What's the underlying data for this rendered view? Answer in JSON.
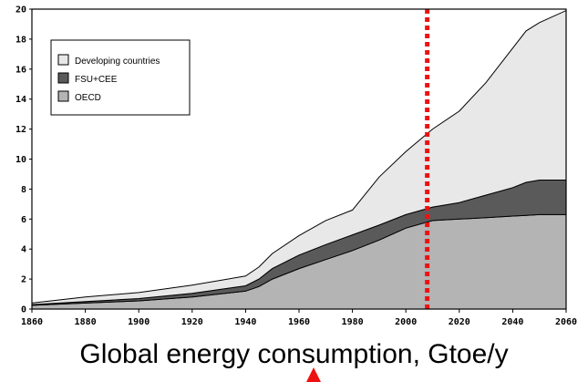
{
  "caption": "Global energy consumption, Gtoe/y",
  "colors": {
    "developing": "#e8e8e8",
    "fsu_cee": "#5a5a5a",
    "oecd": "#b4b4b4",
    "marker_line": "#ee1111",
    "arrow": "#ee1111"
  },
  "chart_data": {
    "type": "area",
    "stacked": true,
    "title": "",
    "xlabel": "",
    "ylabel": "",
    "xlim": [
      1860,
      2060
    ],
    "ylim": [
      0,
      20
    ],
    "x_ticks": [
      "1860",
      "1880",
      "1900",
      "1920",
      "1940",
      "1960",
      "1980",
      "2000",
      "2020",
      "2040",
      "2060"
    ],
    "y_ticks": [
      "0",
      "2",
      "4",
      "6",
      "8",
      "10",
      "12",
      "14",
      "16",
      "18",
      "20"
    ],
    "legend_position": "top-left",
    "legend": [
      "Developing countries",
      "FSU+CEE",
      "OECD"
    ],
    "x": [
      1860,
      1880,
      1900,
      1920,
      1940,
      1945,
      1950,
      1960,
      1970,
      1980,
      1990,
      2000,
      2010,
      2020,
      2030,
      2040,
      2045,
      2050,
      2060
    ],
    "series": [
      {
        "name": "OECD",
        "values": [
          0.25,
          0.4,
          0.55,
          0.8,
          1.2,
          1.5,
          2.0,
          2.7,
          3.3,
          3.9,
          4.6,
          5.4,
          5.9,
          6.0,
          6.1,
          6.2,
          6.25,
          6.3,
          6.3
        ]
      },
      {
        "name": "FSU+CEE",
        "values": [
          0.05,
          0.1,
          0.15,
          0.25,
          0.35,
          0.5,
          0.7,
          0.9,
          1.0,
          1.05,
          1.0,
          0.9,
          0.9,
          1.1,
          1.5,
          1.9,
          2.2,
          2.3,
          2.3
        ]
      },
      {
        "name": "Developing countries",
        "values": [
          0.1,
          0.3,
          0.4,
          0.55,
          0.65,
          0.8,
          1.0,
          1.3,
          1.6,
          1.65,
          3.2,
          4.2,
          5.2,
          6.1,
          7.5,
          9.3,
          10.1,
          10.5,
          11.3
        ]
      }
    ],
    "marker_year": 2008
  }
}
